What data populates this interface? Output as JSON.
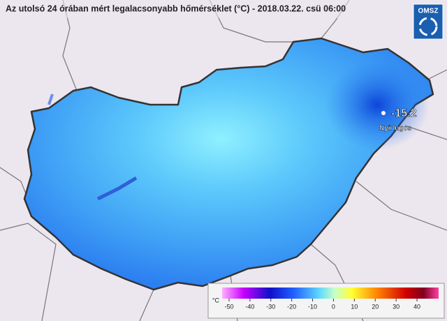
{
  "title": "Az utolsó 24 órában mért legalacsonyabb hőmérséklet (°C) - 2018.03.22. csü 06:00",
  "logo": "OMSZ",
  "minimum": {
    "value": -15.2,
    "place": "Nyírlugos"
  },
  "colorbar": {
    "unit": "°C",
    "ticks": [
      -50,
      -40,
      -30,
      -20,
      -10,
      0,
      10,
      20,
      30,
      40
    ]
  }
}
